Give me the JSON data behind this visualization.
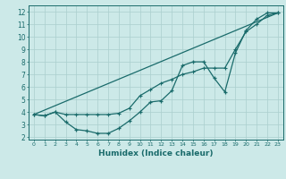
{
  "xlabel": "Humidex (Indice chaleur)",
  "ylabel": "",
  "xlim": [
    -0.5,
    23.5
  ],
  "ylim": [
    1.8,
    12.5
  ],
  "xticks": [
    0,
    1,
    2,
    3,
    4,
    5,
    6,
    7,
    8,
    9,
    10,
    11,
    12,
    13,
    14,
    15,
    16,
    17,
    18,
    19,
    20,
    21,
    22,
    23
  ],
  "yticks": [
    2,
    3,
    4,
    5,
    6,
    7,
    8,
    9,
    10,
    11,
    12
  ],
  "bg_color": "#cce9e8",
  "line_color": "#1a6b6b",
  "grid_color": "#aacfce",
  "series": {
    "line1_x": [
      0,
      1,
      2,
      3,
      4,
      5,
      6,
      7,
      8,
      9,
      10,
      11,
      12,
      13,
      14,
      15,
      16,
      17,
      18,
      19,
      20,
      21,
      22,
      23
    ],
    "line1_y": [
      3.8,
      3.7,
      4.0,
      3.2,
      2.6,
      2.5,
      2.3,
      2.3,
      2.7,
      3.3,
      4.0,
      4.8,
      4.9,
      5.7,
      7.7,
      8.0,
      8.0,
      6.7,
      5.6,
      8.7,
      10.5,
      11.4,
      11.9,
      11.9
    ],
    "line2_x": [
      0,
      23
    ],
    "line2_y": [
      3.8,
      11.9
    ],
    "line3_x": [
      0,
      1,
      2,
      3,
      4,
      5,
      6,
      7,
      8,
      9,
      10,
      11,
      12,
      13,
      14,
      15,
      16,
      17,
      18,
      19,
      20,
      21,
      22,
      23
    ],
    "line3_y": [
      3.8,
      3.7,
      4.0,
      3.8,
      3.8,
      3.8,
      3.8,
      3.8,
      3.9,
      4.3,
      5.3,
      5.8,
      6.3,
      6.6,
      7.0,
      7.2,
      7.5,
      7.5,
      7.5,
      9.0,
      10.4,
      11.0,
      11.7,
      11.9
    ]
  }
}
